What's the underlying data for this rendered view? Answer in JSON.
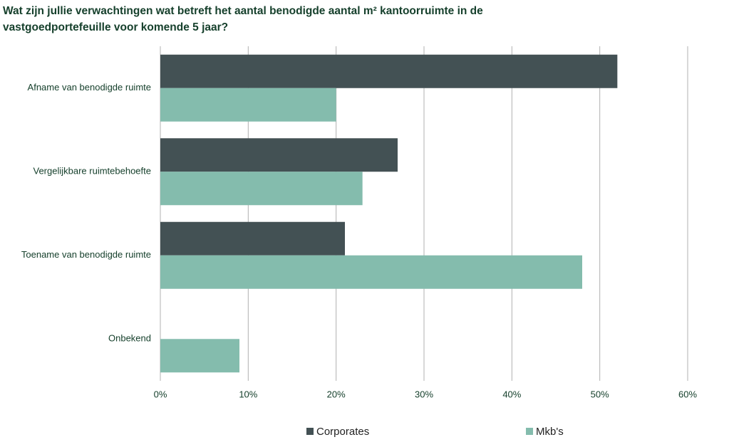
{
  "chart_data": {
    "type": "bar",
    "orientation": "horizontal",
    "title": "Wat zijn jullie verwachtingen wat betreft het aantal benodigde aantal m² kantoorruimte in de vastgoedportefeuille voor komende 5 jaar?",
    "categories": [
      "Afname van benodigde ruimte",
      "Vergelijkbare ruimtebehoefte",
      "Toename van benodigde ruimte",
      "Onbekend"
    ],
    "series": [
      {
        "name": "Corporates",
        "color": "#435154",
        "values": [
          52,
          27,
          21,
          0
        ]
      },
      {
        "name": "Mkb's",
        "color": "#84bcad",
        "values": [
          20,
          23,
          48,
          9
        ]
      }
    ],
    "xlim": [
      0,
      60
    ],
    "xticks": [
      {
        "value": 0,
        "label": "0%"
      },
      {
        "value": 10,
        "label": "10%"
      },
      {
        "value": 20,
        "label": "20%"
      },
      {
        "value": 30,
        "label": "30%"
      },
      {
        "value": 40,
        "label": "40%"
      },
      {
        "value": 50,
        "label": "50%"
      },
      {
        "value": 60,
        "label": "60%"
      }
    ],
    "grid": true,
    "legend": "bottom"
  }
}
